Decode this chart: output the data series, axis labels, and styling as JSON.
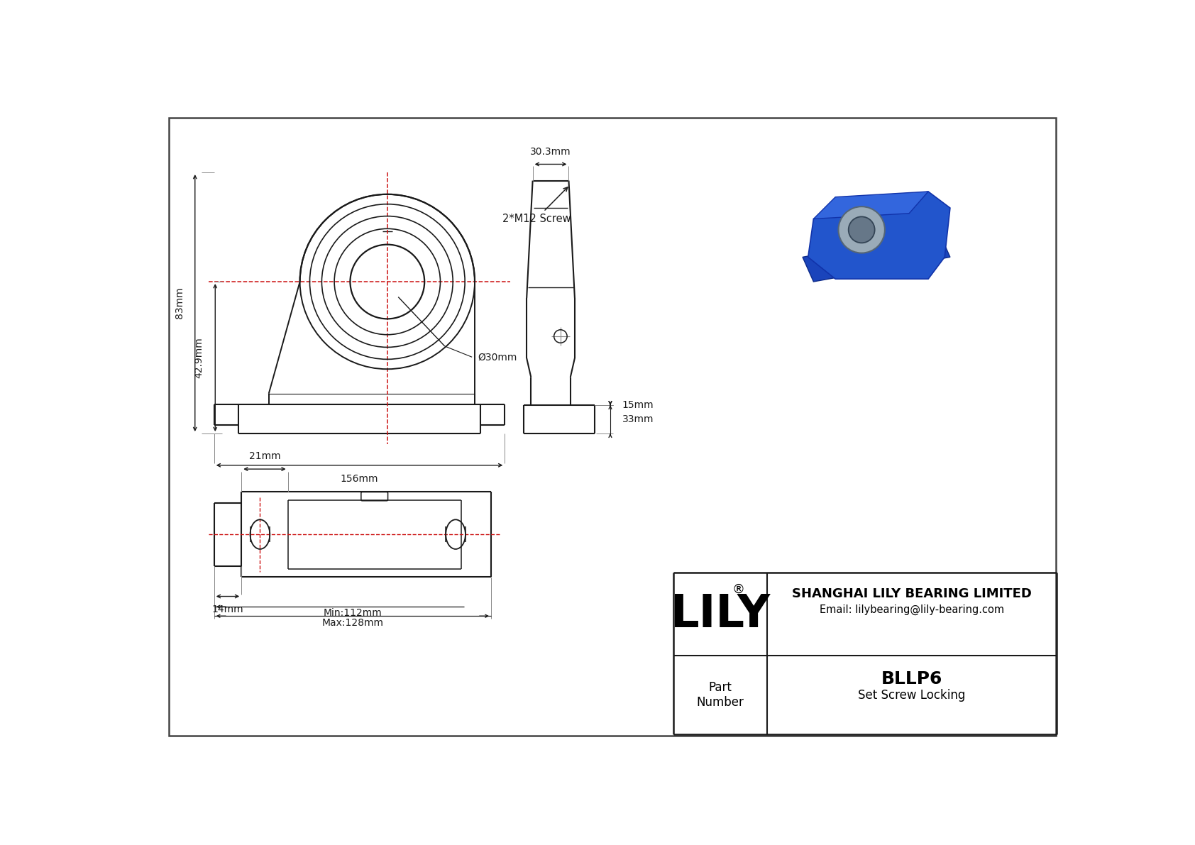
{
  "bg": "#ffffff",
  "lc": "#1a1a1a",
  "rc": "#cc1111",
  "dim_83": "83mm",
  "dim_42_9": "42.9mm",
  "dim_156": "156mm",
  "dim_30": "Ø30mm",
  "dim_30_3": "30.3mm",
  "dim_15": "15mm",
  "dim_33": "33mm",
  "dim_21": "21mm",
  "dim_14": "14mm",
  "dim_min": "Min:112mm",
  "dim_max": "Max:128mm",
  "screw_label": "2*M12 Screw",
  "title_company": "SHANGHAI LILY BEARING LIMITED",
  "title_email": "Email: lilybearing@lily-bearing.com",
  "part_number": "BLLP6",
  "locking_type": "Set Screw Locking",
  "lily_text": "LILY",
  "reg_sym": "®",
  "part_label": "Part\nNumber"
}
